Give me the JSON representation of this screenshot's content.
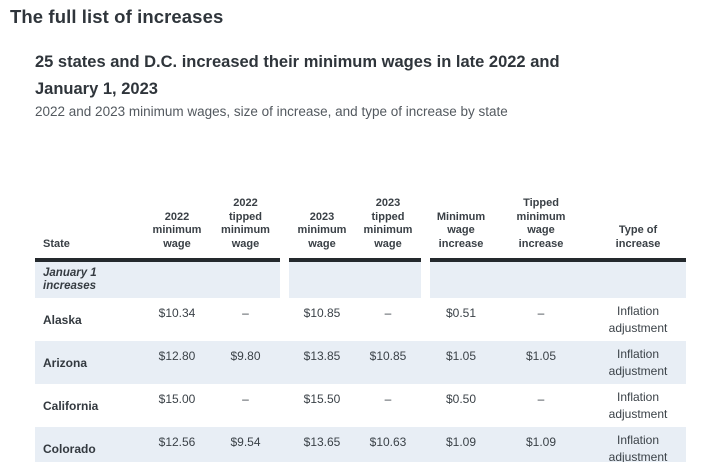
{
  "page": {
    "kicker": "The full list of increases",
    "headline": "25 states and D.C. increased their minimum wages in late 2022 and\nJanuary 1, 2023",
    "subtitle": "2022 and 2023 minimum wages, size of increase, and type of increase by state"
  },
  "table": {
    "headers": [
      "State",
      "2022\nminimum\nwage",
      "2022\ntipped\nminimum\nwage",
      "2023\nminimum\nwage",
      "2023\ntipped\nminimum\nwage",
      "Minimum\nwage\nincrease",
      "Tipped\nminimum\nwage\nincrease",
      "Type of\nincrease"
    ],
    "section_label": "January 1\nincreases",
    "rows": [
      {
        "state": "Alaska",
        "w2022": "$10.34",
        "t2022": "–",
        "w2023": "$10.85",
        "t2023": "–",
        "inc": "$0.51",
        "tinc": "–",
        "type": "Inflation adjustment"
      },
      {
        "state": "Arizona",
        "w2022": "$12.80",
        "t2022": "$9.80",
        "w2023": "$13.85",
        "t2023": "$10.85",
        "inc": "$1.05",
        "tinc": "$1.05",
        "type": "Inflation adjustment"
      },
      {
        "state": "California",
        "w2022": "$15.00",
        "t2022": "–",
        "w2023": "$15.50",
        "t2023": "–",
        "inc": "$0.50",
        "tinc": "–",
        "type": "Inflation adjustment"
      },
      {
        "state": "Colorado",
        "w2022": "$12.56",
        "t2022": "$9.54",
        "w2023": "$13.65",
        "t2023": "$10.63",
        "inc": "$1.09",
        "tinc": "$1.09",
        "type": "Inflation adjustment"
      }
    ],
    "colors": {
      "row_highlight": "#e8eef5",
      "header_border": "#24292d",
      "heading_text": "#2f353b",
      "subtitle_text": "#53595f"
    }
  }
}
